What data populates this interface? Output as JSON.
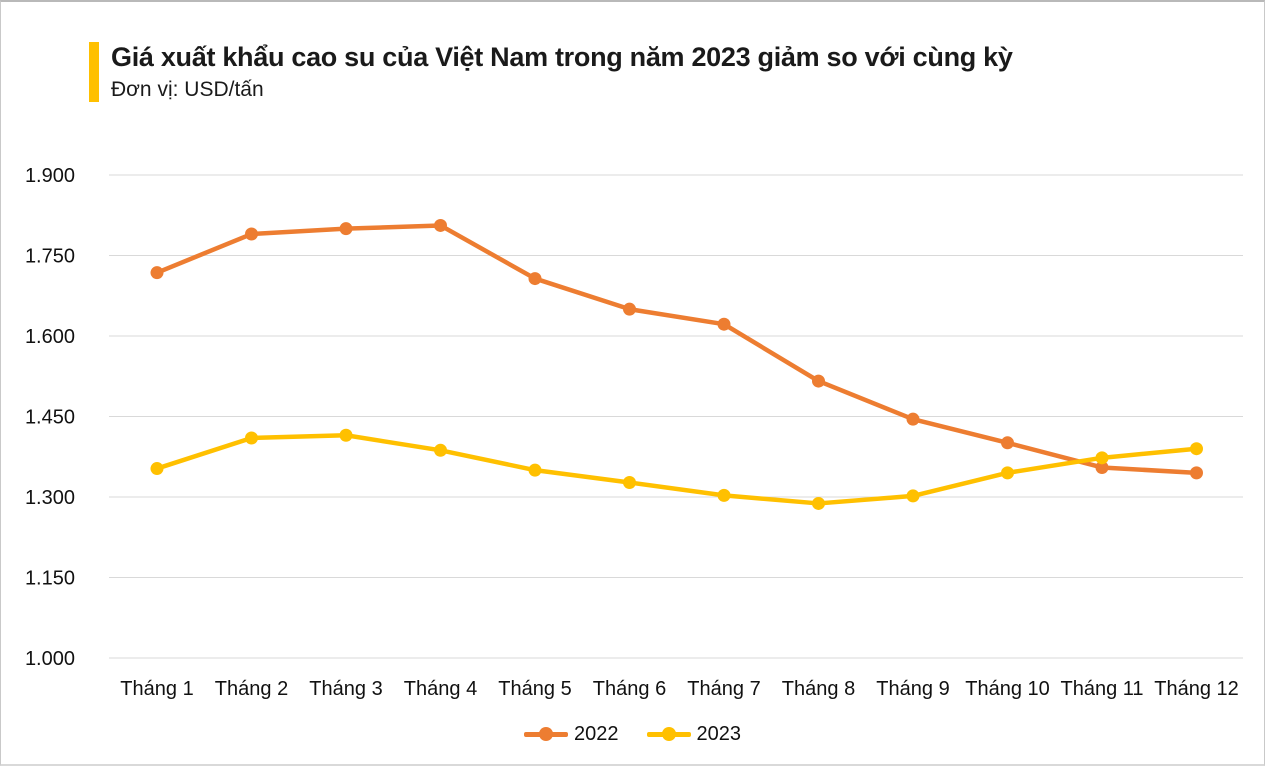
{
  "window": {
    "background": "#ffffff",
    "border_color": "#c9c9c9"
  },
  "header": {
    "accent_color": "#FFC000"
  },
  "chart_data": {
    "type": "line",
    "title": "Giá xuất khẩu cao su của Việt Nam trong năm 2023 giảm so với cùng kỳ",
    "subtitle": "Đơn vị: USD/tấn",
    "unit": "USD/tấn",
    "categories": [
      "Tháng 1",
      "Tháng 2",
      "Tháng 3",
      "Tháng 4",
      "Tháng 5",
      "Tháng 6",
      "Tháng 7",
      "Tháng 8",
      "Tháng 9",
      "Tháng 10",
      "Tháng 11",
      "Tháng 12"
    ],
    "series": [
      {
        "name": "2022",
        "color": "#ED7D31",
        "values": [
          1718,
          1790,
          1800,
          1806,
          1707,
          1650,
          1622,
          1516,
          1445,
          1401,
          1355,
          1345
        ]
      },
      {
        "name": "2023",
        "color": "#FFC000",
        "values": [
          1353,
          1410,
          1415,
          1387,
          1350,
          1327,
          1303,
          1288,
          1302,
          1345,
          1373,
          1390
        ]
      }
    ],
    "xlabel": "",
    "ylabel": "",
    "ylim": [
      1000,
      1900
    ],
    "yticks": [
      1000,
      1150,
      1300,
      1450,
      1600,
      1750,
      1900
    ],
    "ytick_labels": [
      "1.000",
      "1.150",
      "1.300",
      "1.450",
      "1.600",
      "1.750",
      "1.900"
    ],
    "grid": true,
    "gridline_color": "#D9D9D9",
    "axis_text_color": "#111111",
    "legend_position": "bottom"
  }
}
